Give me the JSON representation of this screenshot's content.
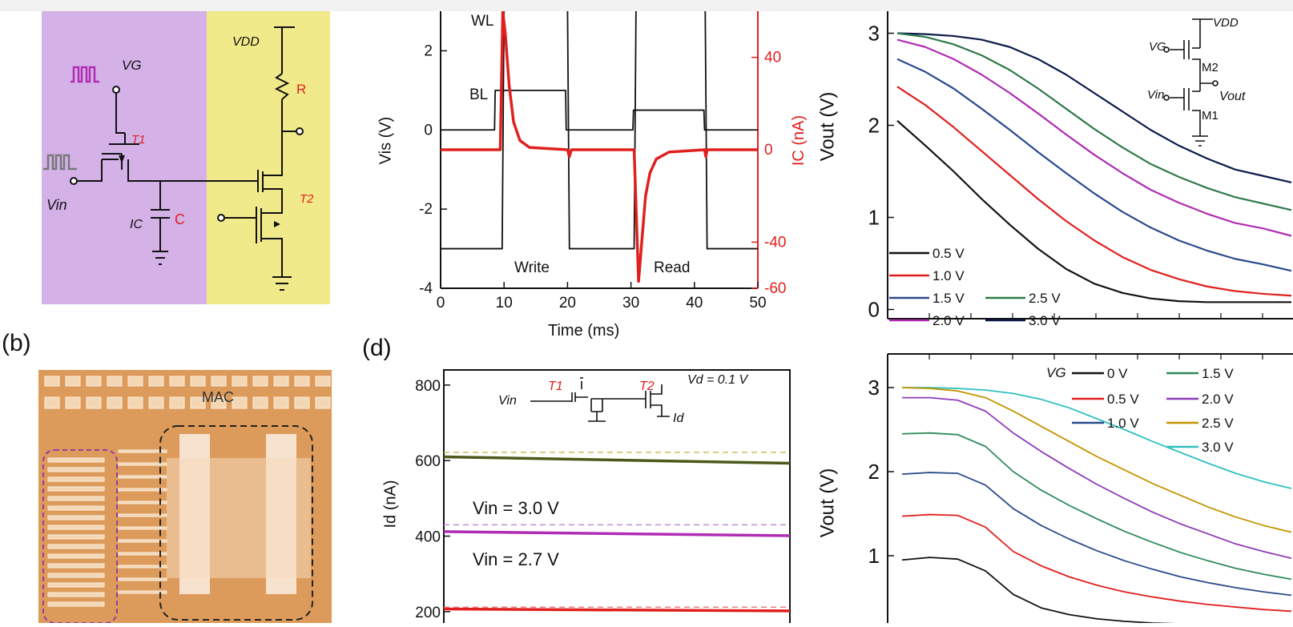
{
  "colors": {
    "purple_bg": "#d4b2e8",
    "yellow_bg": "#f1ea8a",
    "red": "#e0201e",
    "magenta": "#b02cb4",
    "gray_pulse": "#777777",
    "chip_bg": "#dc9b5a",
    "black": "#111111"
  },
  "panel_a": {
    "label_vg": "VG",
    "label_vdd": "VDD",
    "label_r": "R",
    "label_t1": "T1",
    "label_t2": "T2",
    "label_vin": "Vin",
    "label_ic": "IC",
    "label_c": "C"
  },
  "panel_b": {
    "label": "(b)",
    "mac_label": "MAC"
  },
  "panel_d": {
    "label": "(d)",
    "inset": {
      "t1": "T1",
      "t2": "T2",
      "vd": "Vd = 0.1 V",
      "vin": "Vin",
      "id": "Id"
    }
  },
  "panel_e": {
    "inset": {
      "vdd": "VDD",
      "vg": "VG",
      "m2": "M2",
      "m1": "M1",
      "vin": "Vin",
      "vout": "Vout"
    },
    "legend": [
      "0.5 V",
      "1.0 V",
      "1.5 V",
      "2.5 V",
      "2.0 V",
      "3.0 V"
    ]
  },
  "panel_f": {
    "legend_title": "VG",
    "legend": [
      "0 V",
      "1.5 V",
      "0.5 V",
      "2.0 V",
      "1.0 V",
      "2.5 V",
      "3.0 V"
    ]
  },
  "chart_data": [
    {
      "type": "line",
      "xlabel": "Time (ms)",
      "ylabel": "Vis (V)",
      "y2label": "IC (nA)",
      "xlim": [
        0,
        50
      ],
      "ylim": [
        -4,
        3
      ],
      "y2lim": [
        -60,
        60
      ],
      "xticks": [
        0,
        10,
        20,
        30,
        40,
        50
      ],
      "yticks": [
        -4,
        -2,
        0,
        2
      ],
      "y2ticks": [
        -60,
        -40,
        0,
        40
      ],
      "annotations": [
        "WL",
        "BL",
        "Write",
        "Read"
      ],
      "series": [
        {
          "name": "WL",
          "color": "#111111",
          "axis": "left",
          "x": [
            0,
            9.7,
            10,
            20,
            20.3,
            30.5,
            30.8,
            41.7,
            42,
            50
          ],
          "y": [
            -3,
            -3,
            3.1,
            3.1,
            -3,
            -3,
            3.1,
            3.1,
            -3,
            -3
          ]
        },
        {
          "name": "BL",
          "color": "#111111",
          "axis": "left",
          "x": [
            0,
            8.5,
            8.6,
            19.7,
            19.8,
            30.3,
            30.4,
            41.5,
            41.6,
            50
          ],
          "y": [
            0,
            0,
            1.0,
            1.0,
            0,
            0,
            0.5,
            0.5,
            0,
            0
          ]
        },
        {
          "name": "IC",
          "color": "#e0201e",
          "axis": "right",
          "x": [
            0,
            9.4,
            9.8,
            10.2,
            10.8,
            11.5,
            12.5,
            14,
            20,
            20.3,
            20.6,
            30.5,
            31.2,
            31.7,
            32.3,
            33,
            34,
            36,
            41.6,
            41.8,
            42,
            50
          ],
          "y": [
            0,
            0,
            60,
            50,
            28,
            12,
            4,
            1,
            0,
            -3,
            0,
            0,
            -57,
            -40,
            -20,
            -10,
            -4,
            -1,
            0,
            -3,
            0,
            0
          ]
        }
      ]
    },
    {
      "type": "line",
      "ylabel": "Id (nA)",
      "yticks": [
        200,
        400,
        600,
        800
      ],
      "ylim": [
        170,
        840
      ],
      "annotations": [
        "Vin = 3.0 V",
        "Vin = 2.7 V"
      ],
      "series": [
        {
          "color": "#4b5a1a",
          "x": [
            0,
            1
          ],
          "y": [
            610,
            593
          ]
        },
        {
          "color": "#b02cb4",
          "x": [
            0,
            1
          ],
          "y": [
            412,
            401
          ]
        },
        {
          "color": "#e0201e",
          "x": [
            0,
            1
          ],
          "y": [
            207,
            202
          ]
        }
      ],
      "dashed_refs": [
        {
          "color": "#c8c05a",
          "y": 622
        },
        {
          "color": "#c78ad8",
          "y": 430
        },
        {
          "color": "#e88080",
          "y": 212
        }
      ]
    },
    {
      "type": "line",
      "ylabel": "Vout (V)",
      "yticks": [
        0,
        1,
        2,
        3
      ],
      "ylim": [
        -0.1,
        3.1
      ],
      "series": [
        {
          "name": "3.0 V",
          "color": "#0d1a4a",
          "y_points": [
            3.0,
            2.99,
            2.97,
            2.93,
            2.85,
            2.72,
            2.55,
            2.35,
            2.15,
            1.95,
            1.78,
            1.64,
            1.52,
            1.45,
            1.38
          ]
        },
        {
          "name": "2.5 V",
          "color": "#2f7a4a",
          "y_points": [
            3.0,
            2.96,
            2.88,
            2.76,
            2.6,
            2.4,
            2.18,
            1.96,
            1.76,
            1.58,
            1.44,
            1.32,
            1.22,
            1.15,
            1.08
          ]
        },
        {
          "name": "2.0 V",
          "color": "#b02cb4",
          "y_points": [
            2.93,
            2.85,
            2.72,
            2.55,
            2.35,
            2.13,
            1.9,
            1.68,
            1.48,
            1.3,
            1.16,
            1.04,
            0.94,
            0.88,
            0.8
          ]
        },
        {
          "name": "1.5 V",
          "color": "#2a4a8c",
          "y_points": [
            2.72,
            2.58,
            2.4,
            2.18,
            1.95,
            1.71,
            1.48,
            1.26,
            1.06,
            0.89,
            0.75,
            0.64,
            0.55,
            0.49,
            0.42
          ]
        },
        {
          "name": "1.0 V",
          "color": "#e0201e",
          "y_points": [
            2.42,
            2.22,
            1.98,
            1.72,
            1.46,
            1.2,
            0.96,
            0.75,
            0.57,
            0.43,
            0.33,
            0.25,
            0.2,
            0.17,
            0.15
          ]
        },
        {
          "name": "0.5 V",
          "color": "#111111",
          "y_points": [
            2.05,
            1.78,
            1.5,
            1.2,
            0.92,
            0.66,
            0.44,
            0.28,
            0.18,
            0.12,
            0.09,
            0.08,
            0.08,
            0.08,
            0.08
          ]
        }
      ]
    },
    {
      "type": "line",
      "ylabel": "Vout (V)",
      "yticks": [
        1,
        2,
        3
      ],
      "ylim": [
        0.2,
        3.4
      ],
      "series": [
        {
          "name": "3.0 V",
          "color": "#2fc0c0",
          "y_points": [
            3.0,
            3.0,
            2.99,
            2.97,
            2.93,
            2.86,
            2.76,
            2.63,
            2.5,
            2.36,
            2.23,
            2.1,
            1.98,
            1.88,
            1.8
          ]
        },
        {
          "name": "2.5 V",
          "color": "#c49400",
          "y_points": [
            3.0,
            2.99,
            2.96,
            2.88,
            2.72,
            2.54,
            2.36,
            2.18,
            2.02,
            1.86,
            1.72,
            1.58,
            1.46,
            1.36,
            1.28
          ]
        },
        {
          "name": "2.0 V",
          "color": "#8e3cb8",
          "y_points": [
            2.88,
            2.88,
            2.85,
            2.72,
            2.46,
            2.24,
            2.04,
            1.85,
            1.68,
            1.52,
            1.38,
            1.26,
            1.14,
            1.05,
            0.97
          ]
        },
        {
          "name": "1.5 V",
          "color": "#2f8a5a",
          "y_points": [
            2.45,
            2.46,
            2.44,
            2.3,
            2.0,
            1.78,
            1.6,
            1.44,
            1.29,
            1.16,
            1.04,
            0.94,
            0.85,
            0.78,
            0.72
          ]
        },
        {
          "name": "1.0 V",
          "color": "#2a4a8c",
          "y_points": [
            1.97,
            1.99,
            1.98,
            1.84,
            1.56,
            1.36,
            1.2,
            1.06,
            0.94,
            0.84,
            0.75,
            0.68,
            0.62,
            0.57,
            0.53
          ]
        },
        {
          "name": "0.5 V",
          "color": "#e0201e",
          "y_points": [
            1.47,
            1.49,
            1.48,
            1.34,
            1.05,
            0.88,
            0.75,
            0.65,
            0.57,
            0.51,
            0.46,
            0.42,
            0.39,
            0.36,
            0.34
          ]
        },
        {
          "name": "0 V",
          "color": "#111111",
          "y_points": [
            0.95,
            0.98,
            0.96,
            0.82,
            0.54,
            0.38,
            0.3,
            0.25,
            0.22,
            0.2,
            0.19,
            0.18,
            0.17,
            0.17,
            0.16
          ]
        }
      ]
    }
  ]
}
